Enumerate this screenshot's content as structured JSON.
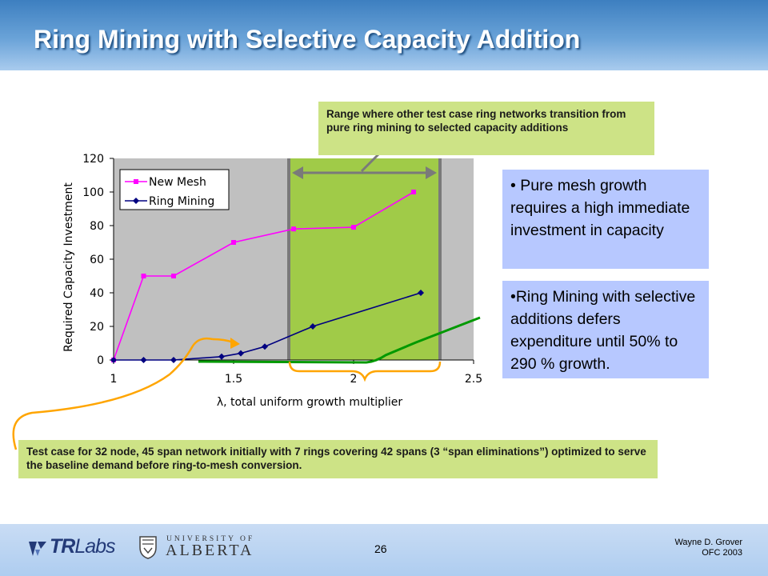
{
  "slide": {
    "title": "Ring Mining with Selective Capacity Addition",
    "page_number": "26",
    "author_line1": "Wayne D. Grover",
    "author_line2": "OFC 2003",
    "logo_tr_bold": "TR",
    "logo_tr_rest": "Labs",
    "logo_ua_top": "UNIVERSITY OF",
    "logo_ua_name": "ALBERTA"
  },
  "callouts": {
    "range": "Range where other test case ring networks transition from pure ring mining to selected capacity additions",
    "test_case": "Test case for 32 node, 45 span network initially with 7 rings covering 42 spans (3 “span eliminations”) optimized to serve the baseline demand before ring-to-mesh conversion."
  },
  "notes": {
    "mesh": "• Pure mesh growth requires a high immediate investment in capacity",
    "ring": "•Ring Mining with selective additions defers expenditure until 50% to 290 % growth."
  },
  "colors": {
    "new_mesh": "#ff00ff",
    "ring_mining": "#000080",
    "selective_line": "#009900",
    "plot_bg": "#c0c0c0",
    "range_band": "#9acd32",
    "orange_brace": "#ffa500"
  },
  "chart_data": {
    "type": "line",
    "xlabel": "λ, total uniform growth multiplier",
    "ylabel": "Required Capacity Investment",
    "xlim": [
      1,
      2.5
    ],
    "ylim": [
      0,
      120
    ],
    "x_ticks": [
      "1",
      "1.5",
      "2",
      "2.5"
    ],
    "y_ticks": [
      "0",
      "20",
      "40",
      "60",
      "80",
      "100",
      "120"
    ],
    "legend_position": "top-left",
    "grid": false,
    "highlight_range": [
      1.73,
      2.36
    ],
    "series": [
      {
        "name": "New Mesh",
        "color": "#ff00ff",
        "marker": "square",
        "x": [
          1.0,
          1.125,
          1.25,
          1.5,
          1.75,
          2.0,
          2.25
        ],
        "y": [
          0,
          50,
          50,
          70,
          78,
          79,
          100
        ]
      },
      {
        "name": "Ring Mining",
        "color": "#000080",
        "marker": "diamond",
        "x": [
          1.0,
          1.125,
          1.25,
          1.45,
          1.53,
          1.63,
          1.83,
          2.28
        ],
        "y": [
          0,
          0,
          0,
          2,
          4,
          8,
          20,
          40
        ]
      }
    ]
  }
}
